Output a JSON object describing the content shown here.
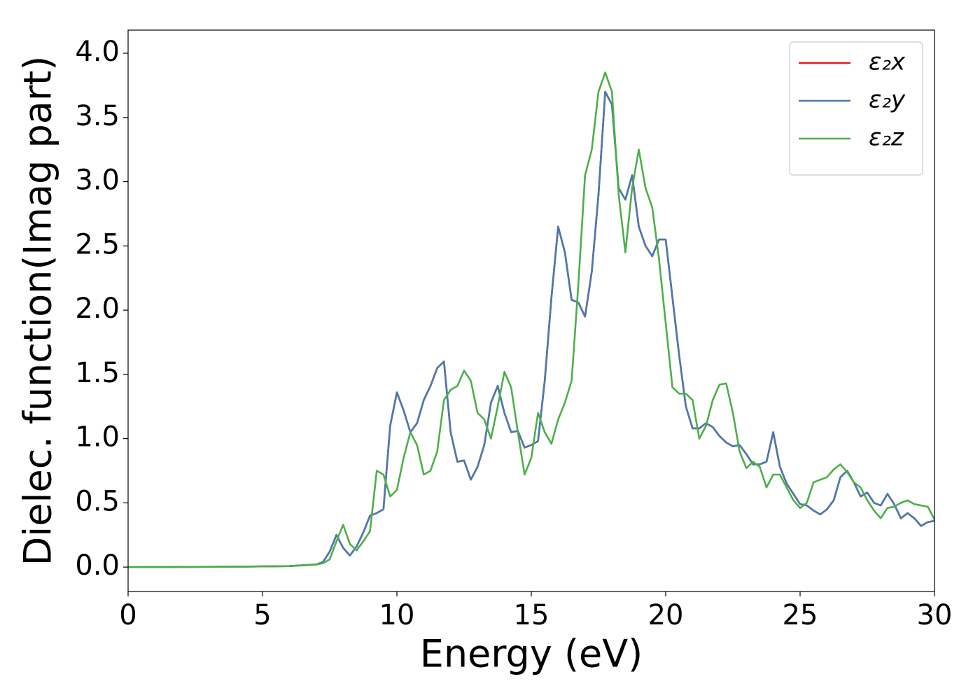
{
  "chart_data": {
    "type": "line",
    "xlabel": "Energy (eV)",
    "ylabel": "Dielec. function(Imag part)",
    "x": [
      0,
      2,
      4,
      6,
      7.0,
      7.25,
      7.5,
      7.75,
      8.0,
      8.25,
      8.5,
      8.75,
      9.0,
      9.25,
      9.5,
      9.75,
      10.0,
      10.25,
      10.5,
      10.75,
      11.0,
      11.25,
      11.5,
      11.75,
      12.0,
      12.25,
      12.5,
      12.75,
      13.0,
      13.25,
      13.5,
      13.75,
      14.0,
      14.25,
      14.5,
      14.75,
      15.0,
      15.25,
      15.5,
      15.75,
      16.0,
      16.25,
      16.5,
      16.75,
      17.0,
      17.25,
      17.5,
      17.75,
      18.0,
      18.25,
      18.5,
      18.75,
      19.0,
      19.25,
      19.5,
      19.75,
      20.0,
      20.25,
      20.5,
      20.75,
      21.0,
      21.25,
      21.5,
      21.75,
      22.0,
      22.25,
      22.5,
      22.75,
      23.0,
      23.25,
      23.5,
      23.75,
      24.0,
      24.25,
      24.5,
      24.75,
      25.0,
      25.25,
      25.5,
      25.75,
      26.0,
      26.25,
      26.5,
      26.75,
      27.0,
      27.25,
      27.5,
      27.75,
      28.0,
      28.25,
      28.5,
      28.75,
      29.0,
      29.25,
      29.5,
      29.75,
      30.0
    ],
    "series": [
      {
        "name": "ε₂x",
        "color": "#e41a1c",
        "values": [
          0,
          0.001,
          0.003,
          0.008,
          0.02,
          0.04,
          0.12,
          0.25,
          0.15,
          0.09,
          0.16,
          0.27,
          0.4,
          0.42,
          0.45,
          1.1,
          1.36,
          1.22,
          1.05,
          1.12,
          1.3,
          1.41,
          1.55,
          1.6,
          1.05,
          0.82,
          0.83,
          0.68,
          0.78,
          0.95,
          1.28,
          1.41,
          1.2,
          1.05,
          1.06,
          0.93,
          0.95,
          0.98,
          1.45,
          2.1,
          2.65,
          2.45,
          2.08,
          2.06,
          1.95,
          2.3,
          2.9,
          3.7,
          3.6,
          2.95,
          2.86,
          3.05,
          2.65,
          2.5,
          2.42,
          2.55,
          2.55,
          2.1,
          1.65,
          1.25,
          1.08,
          1.08,
          1.12,
          1.09,
          1.02,
          0.97,
          0.94,
          0.95,
          0.88,
          0.8,
          0.8,
          0.82,
          1.05,
          0.78,
          0.65,
          0.57,
          0.49,
          0.48,
          0.44,
          0.41,
          0.45,
          0.52,
          0.7,
          0.75,
          0.66,
          0.55,
          0.58,
          0.5,
          0.48,
          0.57,
          0.49,
          0.38,
          0.42,
          0.38,
          0.32,
          0.35,
          0.36
        ]
      },
      {
        "name": "ε₂y",
        "color": "#4a7ab0",
        "values": [
          0,
          0.001,
          0.003,
          0.008,
          0.02,
          0.04,
          0.12,
          0.25,
          0.15,
          0.09,
          0.16,
          0.27,
          0.4,
          0.42,
          0.45,
          1.1,
          1.36,
          1.22,
          1.05,
          1.12,
          1.3,
          1.41,
          1.55,
          1.6,
          1.05,
          0.82,
          0.83,
          0.68,
          0.78,
          0.95,
          1.28,
          1.41,
          1.2,
          1.05,
          1.06,
          0.93,
          0.95,
          0.98,
          1.45,
          2.1,
          2.65,
          2.45,
          2.08,
          2.06,
          1.95,
          2.3,
          2.9,
          3.7,
          3.6,
          2.95,
          2.86,
          3.05,
          2.65,
          2.5,
          2.42,
          2.55,
          2.55,
          2.1,
          1.65,
          1.25,
          1.08,
          1.08,
          1.12,
          1.09,
          1.02,
          0.97,
          0.94,
          0.95,
          0.88,
          0.8,
          0.8,
          0.82,
          1.05,
          0.78,
          0.65,
          0.57,
          0.49,
          0.48,
          0.44,
          0.41,
          0.45,
          0.52,
          0.7,
          0.75,
          0.66,
          0.55,
          0.58,
          0.5,
          0.48,
          0.57,
          0.49,
          0.38,
          0.42,
          0.38,
          0.32,
          0.35,
          0.36
        ]
      },
      {
        "name": "ε₂z",
        "color": "#4daf4a",
        "values": [
          0,
          0.001,
          0.003,
          0.008,
          0.02,
          0.03,
          0.06,
          0.2,
          0.33,
          0.18,
          0.13,
          0.2,
          0.28,
          0.75,
          0.72,
          0.55,
          0.6,
          0.85,
          1.05,
          0.95,
          0.72,
          0.75,
          0.9,
          1.3,
          1.38,
          1.41,
          1.53,
          1.45,
          1.2,
          1.15,
          1.0,
          1.25,
          1.52,
          1.4,
          1.05,
          0.72,
          0.85,
          1.2,
          1.05,
          0.96,
          1.15,
          1.28,
          1.45,
          2.2,
          3.05,
          3.25,
          3.7,
          3.85,
          3.7,
          2.9,
          2.45,
          2.95,
          3.25,
          2.95,
          2.8,
          2.4,
          1.9,
          1.4,
          1.35,
          1.35,
          1.3,
          1.0,
          1.1,
          1.3,
          1.42,
          1.43,
          1.2,
          0.9,
          0.77,
          0.82,
          0.78,
          0.62,
          0.72,
          0.72,
          0.62,
          0.52,
          0.46,
          0.5,
          0.66,
          0.68,
          0.7,
          0.76,
          0.8,
          0.74,
          0.66,
          0.62,
          0.52,
          0.44,
          0.38,
          0.46,
          0.47,
          0.5,
          0.52,
          0.49,
          0.48,
          0.47,
          0.37
        ]
      }
    ],
    "xlim": [
      0,
      30
    ],
    "xticks": [
      0,
      5,
      10,
      15,
      20,
      25,
      30
    ],
    "ylim": [
      -0.19,
      4.18
    ],
    "yticks": [
      {
        "value": 0,
        "label": "0.0"
      },
      0.5,
      {
        "value": 1,
        "label": "1.0"
      },
      1.5,
      {
        "value": 2,
        "label": "2.0"
      },
      2.5,
      {
        "value": 3,
        "label": "3.0"
      },
      3.5,
      {
        "value": 4,
        "label": "4.0"
      }
    ],
    "grid": false,
    "legend": "upper right"
  }
}
